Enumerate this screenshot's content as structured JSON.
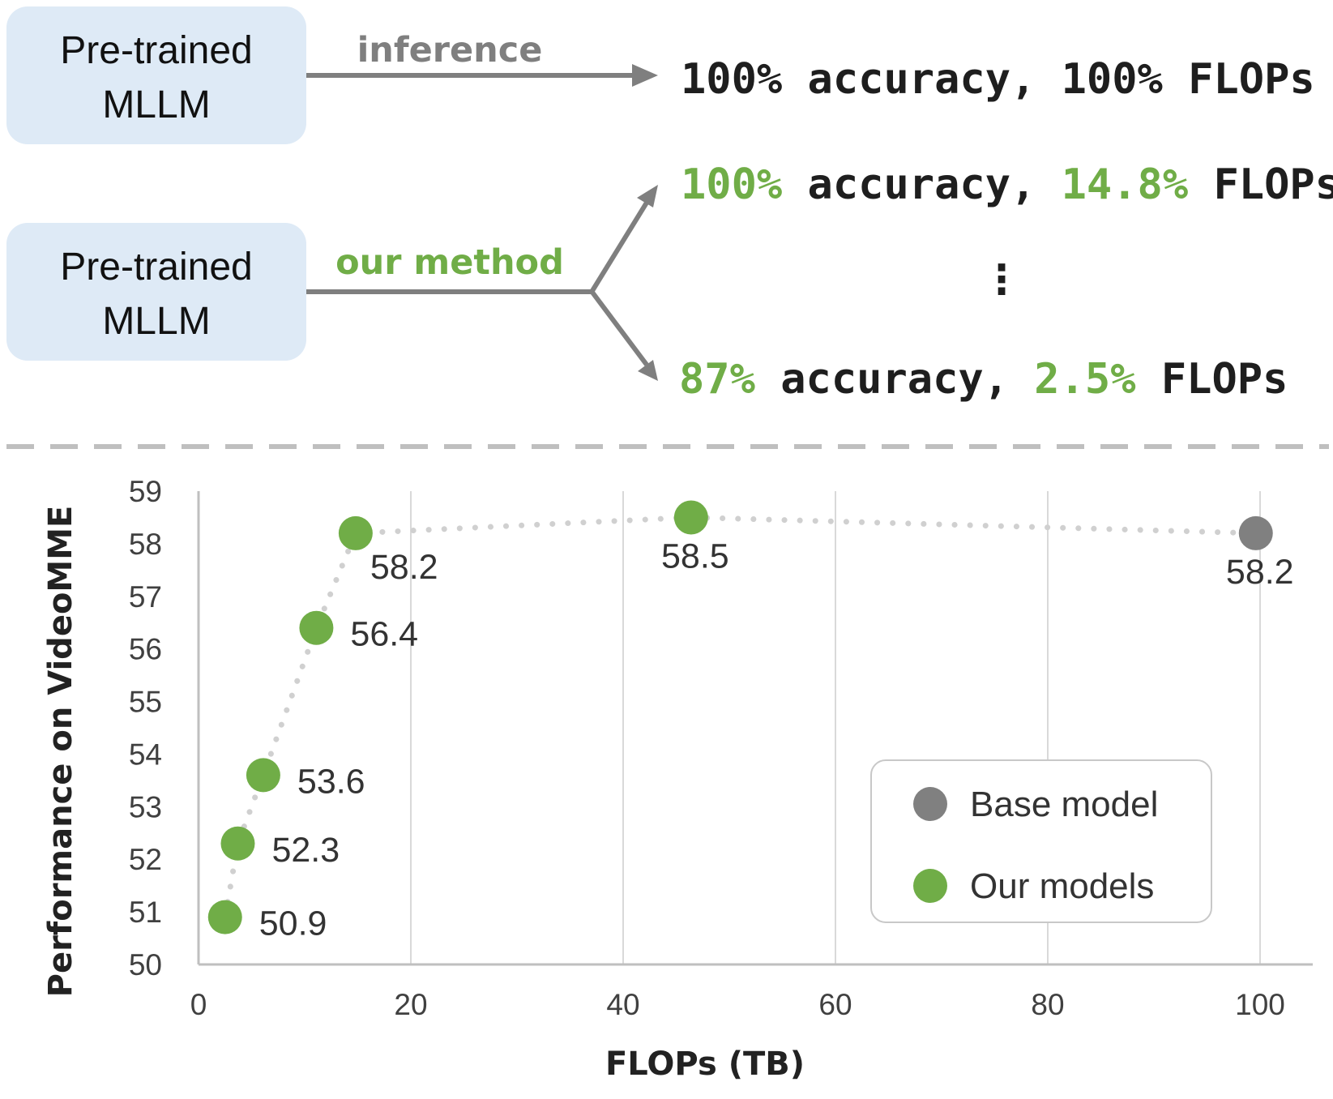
{
  "diagram": {
    "box_top_label": [
      "Pre-trained",
      "MLLM"
    ],
    "box_bottom_label": [
      "Pre-trained",
      "MLLM"
    ],
    "inference_label": "inference",
    "method_label": "our method",
    "ellipsis": "⋮",
    "result_base": {
      "acc": "100%",
      "acc_word": " accuracy, ",
      "flops": "100%",
      "flops_word": " FLOPs"
    },
    "result_high": {
      "acc": "100%",
      "acc_word": " accuracy, ",
      "flops": "14.8%",
      "flops_word": " FLOPs"
    },
    "result_low": {
      "acc": "87%",
      "acc_word": " accuracy, ",
      "flops": "2.5%",
      "flops_word": " FLOPs"
    }
  },
  "colors": {
    "box_fill": "#deeaf6",
    "arrow_gray": "#7f7f7f",
    "inference_text": "#7f7f7f",
    "green": "#70ad47",
    "base_gray": "#808080",
    "grid": "#d9d9d9",
    "dotted_line": "#d0d0d0"
  },
  "chart_data": {
    "type": "scatter",
    "xlabel": "FLOPs (TB)",
    "ylabel": "Performance on VideoMME",
    "xlim": [
      0,
      100
    ],
    "ylim": [
      50,
      59
    ],
    "x_ticks": [
      0,
      20,
      40,
      60,
      80,
      100
    ],
    "y_ticks": [
      50,
      51,
      52,
      53,
      54,
      55,
      56,
      57,
      58,
      59
    ],
    "grid": "vertical",
    "legend_position": "bottom-right",
    "series": [
      {
        "name": "Base model",
        "color": "#808080",
        "x": [
          99.6
        ],
        "y": [
          58.2
        ],
        "labels": [
          "58.2"
        ]
      },
      {
        "name": "Our models",
        "color": "#70ad47",
        "x": [
          2.5,
          3.7,
          6.1,
          11.1,
          14.8,
          46.4
        ],
        "y": [
          50.9,
          52.3,
          53.6,
          56.4,
          58.2,
          58.5
        ],
        "labels": [
          "50.9",
          "52.3",
          "53.6",
          "56.4",
          "58.2",
          "58.5"
        ]
      }
    ]
  }
}
